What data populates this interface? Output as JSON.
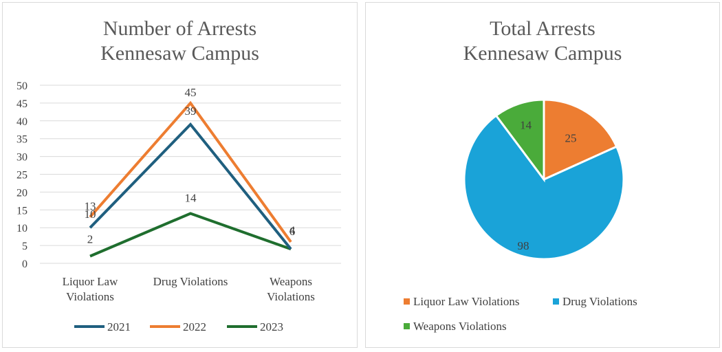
{
  "colors": {
    "s2021": "#1f5f7f",
    "s2022": "#ed7d31",
    "s2023": "#1f6e2e",
    "liquor": "#ed7d31",
    "drug": "#1aa3d8",
    "weapons": "#4aab3a",
    "grid": "#d9d9d9",
    "text": "#404040"
  },
  "chart_data": [
    {
      "type": "line",
      "title": [
        "Number of Arrests",
        "Kennesaw Campus"
      ],
      "categories": [
        [
          "Liquor Law",
          "Violations"
        ],
        [
          "Drug Violations"
        ],
        [
          "Weapons",
          "Violations"
        ]
      ],
      "ylim": [
        0,
        50
      ],
      "yticks": [
        "0",
        "5",
        "10",
        "15",
        "20",
        "25",
        "30",
        "35",
        "40",
        "45",
        "50"
      ],
      "grid": true,
      "legend": "bottom",
      "series": [
        {
          "name": "2021",
          "values": [
            10,
            39,
            4
          ],
          "labels": [
            "10",
            "39",
            "4"
          ]
        },
        {
          "name": "2022",
          "values": [
            13,
            45,
            6
          ],
          "labels": [
            "13",
            "45",
            "6"
          ]
        },
        {
          "name": "2023",
          "values": [
            2,
            14,
            4
          ],
          "labels": [
            "2",
            "14",
            ""
          ]
        }
      ]
    },
    {
      "type": "pie",
      "title": [
        "Total Arrests",
        "Kennesaw Campus"
      ],
      "legend": "bottom",
      "slices": [
        {
          "name": "Liquor Law Violations",
          "value": 25,
          "label": "25"
        },
        {
          "name": "Drug Violations",
          "value": 98,
          "label": "98"
        },
        {
          "name": "Weapons Violations",
          "value": 14,
          "label": "14"
        }
      ]
    }
  ]
}
